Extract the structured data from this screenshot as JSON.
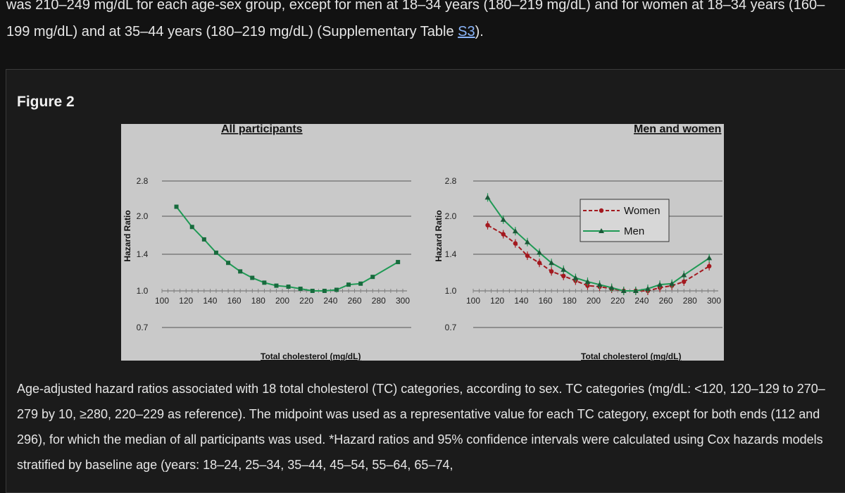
{
  "intro": {
    "text_before": "was 210–249 mg/dL for each age-sex group, except for men at 18–34 years (180–219 mg/dL) and for women at 18–34 years (160–199 mg/dL) and at 35–44 years (180–219 mg/dL) (Supplementary Table ",
    "link": "S3",
    "text_after": ")."
  },
  "figure": {
    "title": "Figure 2",
    "caption": "Age-adjusted hazard ratios associated with 18 total cholesterol (TC) categories, according to sex. TC categories (mg/dL: <120, 120–129 to 270–279 by 10, ≥280, 220–229 as reference). The midpoint was used as a representative value for each TC category, except for both ends (112 and 296), for which the median of all participants was used. *Hazard ratios and 95% confidence intervals were calculated using Cox hazards models stratified by baseline age (years: 18–24, 25–34, 35–44, 45–54, 55–64, 65–74,"
  },
  "colors": {
    "panel_bg": "#c9c9c9",
    "all": "#1f9a55",
    "men": "#1f9a55",
    "women": "#a3191f"
  },
  "chart_data": [
    {
      "type": "line",
      "title": "All participants",
      "xlabel": "Total cholesterol (mg/dL)",
      "ylabel": "Hazard Ratio",
      "xlim": [
        100,
        300
      ],
      "xticks": [
        "100",
        "120",
        "140",
        "160",
        "180",
        "200",
        "220",
        "240",
        "260",
        "280",
        "300"
      ],
      "ylim": [
        0.7,
        2.8
      ],
      "yticks": [
        "2.8",
        "2.0",
        "1.4",
        "1.0",
        "0.7"
      ],
      "y_scale": "log",
      "grid": true,
      "series": [
        {
          "x": [
            112,
            125,
            135,
            145,
            155,
            165,
            175,
            185,
            195,
            205,
            215,
            225,
            235,
            245,
            255,
            265,
            275,
            296
          ],
          "y": [
            2.2,
            1.82,
            1.62,
            1.43,
            1.3,
            1.2,
            1.13,
            1.08,
            1.05,
            1.04,
            1.02,
            1.0,
            1.0,
            1.01,
            1.06,
            1.07,
            1.14,
            1.31
          ]
        }
      ]
    },
    {
      "type": "line",
      "title": "Men and women",
      "xlabel": "Total cholesterol (mg/dL)",
      "ylabel": "Hazard Ratio",
      "xlim": [
        100,
        300
      ],
      "xticks": [
        "100",
        "120",
        "140",
        "160",
        "180",
        "200",
        "220",
        "240",
        "260",
        "280",
        "300"
      ],
      "ylim": [
        0.7,
        2.8
      ],
      "yticks": [
        "2.8",
        "2.0",
        "1.4",
        "1.0",
        "0.7"
      ],
      "y_scale": "log",
      "grid": true,
      "legend": "top-right",
      "series": [
        {
          "name": "Women",
          "x": [
            112,
            125,
            135,
            145,
            155,
            165,
            175,
            185,
            195,
            205,
            215,
            225,
            235,
            245,
            255,
            265,
            275,
            296
          ],
          "y": [
            1.85,
            1.7,
            1.56,
            1.39,
            1.3,
            1.2,
            1.15,
            1.1,
            1.05,
            1.04,
            1.02,
            1.0,
            1.0,
            1.0,
            1.03,
            1.05,
            1.09,
            1.26
          ]
        },
        {
          "name": "Men",
          "x": [
            112,
            125,
            135,
            145,
            155,
            165,
            175,
            185,
            195,
            205,
            215,
            225,
            235,
            245,
            255,
            265,
            275,
            296
          ],
          "y": [
            2.4,
            1.95,
            1.75,
            1.58,
            1.43,
            1.3,
            1.22,
            1.13,
            1.09,
            1.06,
            1.03,
            1.0,
            1.0,
            1.02,
            1.06,
            1.07,
            1.16,
            1.36
          ]
        }
      ]
    }
  ]
}
